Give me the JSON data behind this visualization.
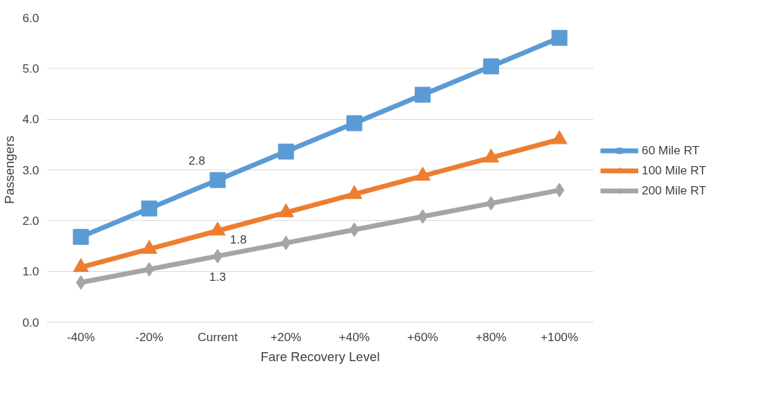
{
  "chart_data": {
    "type": "line",
    "xlabel": "Fare Recovery Level",
    "ylabel": "Passengers",
    "categories": [
      "-40%",
      "-20%",
      "Current",
      "+20%",
      "+40%",
      "+60%",
      "+80%",
      "+100%"
    ],
    "series": [
      {
        "name": "60 Mile RT",
        "color": "#5b9bd5",
        "marker": "square",
        "values": [
          1.68,
          2.24,
          2.8,
          3.36,
          3.92,
          4.48,
          5.04,
          5.6
        ],
        "value_labels": [
          null,
          null,
          "2.8",
          null,
          null,
          null,
          null,
          null
        ]
      },
      {
        "name": "100 Mile RT",
        "color": "#ed7d31",
        "marker": "triangle",
        "values": [
          1.08,
          1.44,
          1.8,
          2.16,
          2.52,
          2.88,
          3.24,
          3.6
        ],
        "value_labels": [
          null,
          null,
          "1.8",
          null,
          null,
          null,
          null,
          null
        ]
      },
      {
        "name": "200 Mile RT",
        "color": "#a5a5a5",
        "marker": "diamond",
        "values": [
          0.78,
          1.04,
          1.3,
          1.56,
          1.82,
          2.08,
          2.34,
          2.6
        ],
        "value_labels": [
          null,
          null,
          "1.3",
          null,
          null,
          null,
          null,
          null
        ]
      }
    ],
    "ylim": [
      0,
      6
    ],
    "yticks": [
      {
        "value": 0,
        "label": "0.0"
      },
      {
        "value": 1,
        "label": "1.0"
      },
      {
        "value": 2,
        "label": "2.0"
      },
      {
        "value": 3,
        "label": "3.0"
      },
      {
        "value": 4,
        "label": "4.0"
      },
      {
        "value": 5,
        "label": "5.0"
      },
      {
        "value": 6,
        "label": "6.0"
      }
    ],
    "grid": "y",
    "legend": "right",
    "line_style": "solid"
  }
}
